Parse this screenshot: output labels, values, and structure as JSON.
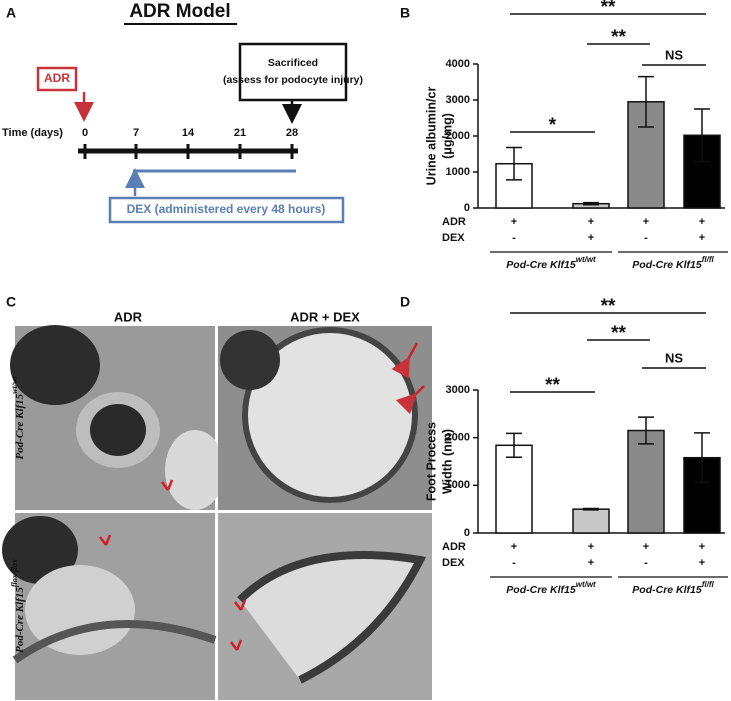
{
  "panel_a": {
    "label": "A",
    "title": "ADR Model",
    "adr_box": "ADR",
    "sacrifice_box": [
      "Sacrificed",
      "(assess for podocyte injury)"
    ],
    "timeline_label": "Time (days)",
    "days": [
      0,
      7,
      14,
      21,
      28
    ],
    "dex_box": "DEX (administered every 48 hours)"
  },
  "panel_c": {
    "label": "C",
    "columns": [
      "ADR",
      "ADR + DEX"
    ],
    "rows": [
      {
        "text": "Pod-Cre Klf15",
        "sup": "wt/wt"
      },
      {
        "text": "Pod-Cre Klf15",
        "sup": "flox/flox"
      }
    ]
  },
  "chart_data": [
    {
      "panel": "B",
      "type": "bar",
      "ylabel": [
        "Urine albumin/cr",
        "(μg/mg)"
      ],
      "values": [
        1230,
        120,
        2950,
        2020
      ],
      "errors": [
        450,
        30,
        700,
        730
      ],
      "colors": [
        "#ffffff",
        "#c8c8c8",
        "#8a8a8a",
        "#000000"
      ],
      "ylim": [
        0,
        4000
      ],
      "yticks": [
        0,
        1000,
        2000,
        3000,
        4000
      ],
      "conditions": [
        {
          "name": "ADR",
          "marks": [
            "+",
            "+",
            "+",
            "+"
          ]
        },
        {
          "name": "DEX",
          "marks": [
            "-",
            "+",
            "-",
            "+"
          ]
        }
      ],
      "groups": [
        {
          "text": "Pod-Cre Klf15",
          "sup": "wt/wt"
        },
        {
          "text": "Pod-Cre Klf15",
          "sup": "fl/fl"
        }
      ],
      "annotations": [
        "*",
        "**",
        "**",
        "NS"
      ]
    },
    {
      "panel": "D",
      "type": "bar",
      "ylabel": [
        "Foot Process",
        "Width (nm)"
      ],
      "values": [
        1840,
        500,
        2150,
        1580
      ],
      "errors": [
        250,
        15,
        280,
        520
      ],
      "colors": [
        "#ffffff",
        "#c8c8c8",
        "#8a8a8a",
        "#000000"
      ],
      "ylim": [
        0,
        3000
      ],
      "yticks": [
        0,
        1000,
        2000,
        3000
      ],
      "conditions": [
        {
          "name": "ADR",
          "marks": [
            "+",
            "+",
            "+",
            "+"
          ]
        },
        {
          "name": "DEX",
          "marks": [
            "-",
            "+",
            "-",
            "+"
          ]
        }
      ],
      "groups": [
        {
          "text": "Pod-Cre Klf15",
          "sup": "wt/wt"
        },
        {
          "text": "Pod-Cre Klf15",
          "sup": "fl/fl"
        }
      ],
      "annotations": [
        "**",
        "**",
        "**",
        "NS"
      ]
    }
  ]
}
